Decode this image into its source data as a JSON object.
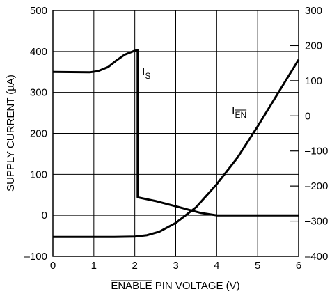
{
  "chart_data": {
    "type": "line",
    "xlabel": "ENABLE PIN VOLTAGE (V)",
    "xlabel_overline_part": "ENABLE",
    "xlabel_rest": " PIN VOLTAGE (V)",
    "ylabel_left": "SUPPLY CURRENT (µA)",
    "ylabel_right": "",
    "xlim": [
      0,
      6
    ],
    "ylim_left": [
      -100,
      500
    ],
    "ylim_right": [
      -400,
      300
    ],
    "grid": true,
    "x_ticks": [
      "0",
      "1",
      "2",
      "3",
      "4",
      "5",
      "6"
    ],
    "y_left_ticks": [
      "–100",
      "0",
      "100",
      "200",
      "300",
      "400",
      "500"
    ],
    "y_right_ticks": [
      "–400",
      "–300",
      "–200",
      "–100",
      "0",
      "100",
      "200",
      "300"
    ],
    "line_color": "#000000",
    "series": [
      {
        "name": "IS",
        "label_main": "I",
        "label_sub": "S",
        "axis": "left",
        "points": [
          [
            0,
            350
          ],
          [
            0.9,
            349
          ],
          [
            1.1,
            352
          ],
          [
            1.35,
            362
          ],
          [
            1.55,
            378
          ],
          [
            1.75,
            392
          ],
          [
            2.0,
            402
          ],
          [
            2.07,
            403
          ],
          [
            2.07,
            44
          ],
          [
            2.5,
            35
          ],
          [
            3.0,
            22
          ],
          [
            3.3,
            14
          ],
          [
            3.6,
            6
          ],
          [
            4.0,
            0
          ],
          [
            5.0,
            0
          ],
          [
            6.0,
            0
          ]
        ]
      },
      {
        "name": "IEN",
        "label_main": "I",
        "label_sub": "EN",
        "axis": "right",
        "points": [
          [
            0,
            -345
          ],
          [
            1.5,
            -345
          ],
          [
            2.0,
            -344
          ],
          [
            2.3,
            -340
          ],
          [
            2.6,
            -330
          ],
          [
            3.0,
            -305
          ],
          [
            3.5,
            -260
          ],
          [
            4.0,
            -195
          ],
          [
            4.5,
            -120
          ],
          [
            5.0,
            -30
          ],
          [
            5.5,
            65
          ],
          [
            6.0,
            160
          ]
        ]
      }
    ]
  }
}
